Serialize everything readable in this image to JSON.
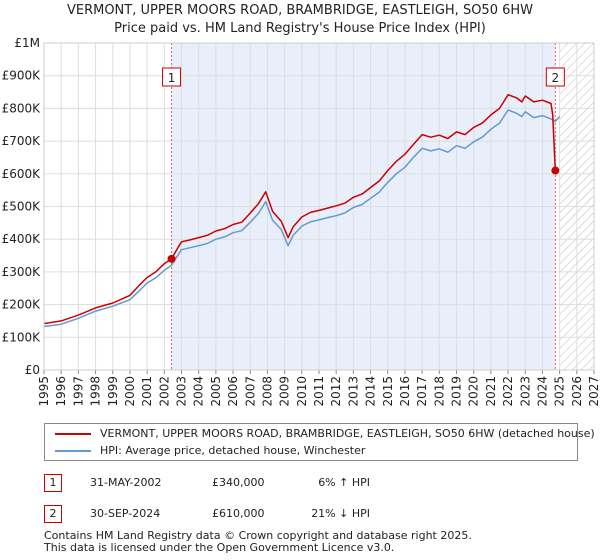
{
  "title_line1": "VERMONT, UPPER MOORS ROAD, BRAMBRIDGE, EASTLEIGH, SO50 6HW",
  "title_line2": "Price paid vs. HM Land Registry's House Price Index (HPI)",
  "colors": {
    "property_line": "#cc0000",
    "hpi_line": "#6699cc",
    "shade": "#e8eefa",
    "marker_line": "#e06060",
    "grid": "#dddddd"
  },
  "chart_data": {
    "type": "line",
    "title": "VERMONT, UPPER MOORS ROAD, BRAMBRIDGE, EASTLEIGH, SO50 6HW — Price paid vs. HM Land Registry's House Price Index (HPI)",
    "xlabel": "",
    "ylabel": "",
    "xlim": [
      1995,
      2027
    ],
    "ylim": [
      0,
      1000000
    ],
    "y_ticks": [
      {
        "value": 0,
        "label": "£0"
      },
      {
        "value": 100000,
        "label": "£100K"
      },
      {
        "value": 200000,
        "label": "£200K"
      },
      {
        "value": 300000,
        "label": "£300K"
      },
      {
        "value": 400000,
        "label": "£400K"
      },
      {
        "value": 500000,
        "label": "£500K"
      },
      {
        "value": 600000,
        "label": "£600K"
      },
      {
        "value": 700000,
        "label": "£700K"
      },
      {
        "value": 800000,
        "label": "£800K"
      },
      {
        "value": 900000,
        "label": "£900K"
      },
      {
        "value": 1000000,
        "label": "£1M"
      }
    ],
    "x_ticks": [
      "1995",
      "1996",
      "1997",
      "1998",
      "1999",
      "2000",
      "2001",
      "2002",
      "2003",
      "2004",
      "2005",
      "2006",
      "2007",
      "2008",
      "2009",
      "2010",
      "2011",
      "2012",
      "2013",
      "2014",
      "2015",
      "2016",
      "2017",
      "2018",
      "2019",
      "2020",
      "2021",
      "2022",
      "2023",
      "2024",
      "2025",
      "2026",
      "2027"
    ],
    "grid": true,
    "shaded_region": [
      2002.42,
      2024.75
    ],
    "hatched_region": [
      2025.0,
      2027
    ],
    "series": [
      {
        "name": "VERMONT, UPPER MOORS ROAD, BRAMBRIDGE, EASTLEIGH, SO50 6HW (detached house)",
        "x": [
          1995.0,
          1996.0,
          1997.0,
          1998.0,
          1999.0,
          2000.0,
          2000.6,
          2001.0,
          2001.5,
          2002.0,
          2002.42,
          2002.8,
          2003.0,
          2003.5,
          2004.0,
          2004.5,
          2005.0,
          2005.5,
          2006.0,
          2006.5,
          2007.0,
          2007.5,
          2007.9,
          2008.3,
          2008.8,
          2009.2,
          2009.5,
          2010.0,
          2010.5,
          2011.0,
          2011.5,
          2012.0,
          2012.5,
          2013.0,
          2013.5,
          2014.0,
          2014.5,
          2015.0,
          2015.5,
          2016.0,
          2016.5,
          2017.0,
          2017.5,
          2018.0,
          2018.5,
          2019.0,
          2019.5,
          2020.0,
          2020.5,
          2021.0,
          2021.5,
          2022.0,
          2022.5,
          2022.8,
          2023.0,
          2023.5,
          2024.0,
          2024.5,
          2024.6,
          2024.75
        ],
        "values": [
          142000,
          150000,
          168000,
          190000,
          205000,
          228000,
          262000,
          283000,
          300000,
          325000,
          340000,
          375000,
          392000,
          398000,
          405000,
          412000,
          425000,
          432000,
          445000,
          452000,
          480000,
          510000,
          545000,
          485000,
          455000,
          405000,
          438000,
          468000,
          482000,
          488000,
          495000,
          502000,
          510000,
          528000,
          538000,
          558000,
          578000,
          610000,
          638000,
          660000,
          690000,
          720000,
          712000,
          718000,
          708000,
          728000,
          720000,
          742000,
          755000,
          780000,
          800000,
          842000,
          832000,
          820000,
          838000,
          820000,
          825000,
          815000,
          780000,
          610000
        ]
      },
      {
        "name": "HPI: Average price, detached house, Winchester",
        "x": [
          1995.0,
          1996.0,
          1997.0,
          1998.0,
          1999.0,
          2000.0,
          2000.6,
          2001.0,
          2001.5,
          2002.0,
          2002.42,
          2002.8,
          2003.0,
          2003.5,
          2004.0,
          2004.5,
          2005.0,
          2005.5,
          2006.0,
          2006.5,
          2007.0,
          2007.5,
          2007.9,
          2008.3,
          2008.8,
          2009.2,
          2009.5,
          2010.0,
          2010.5,
          2011.0,
          2011.5,
          2012.0,
          2012.5,
          2013.0,
          2013.5,
          2014.0,
          2014.5,
          2015.0,
          2015.5,
          2016.0,
          2016.5,
          2017.0,
          2017.5,
          2018.0,
          2018.5,
          2019.0,
          2019.5,
          2020.0,
          2020.5,
          2021.0,
          2021.5,
          2022.0,
          2022.5,
          2022.8,
          2023.0,
          2023.5,
          2024.0,
          2024.5,
          2024.75,
          2025.0
        ],
        "values": [
          133000,
          140000,
          158000,
          180000,
          195000,
          215000,
          245000,
          266000,
          282000,
          305000,
          320000,
          352000,
          368000,
          374000,
          380000,
          387000,
          400000,
          407000,
          420000,
          426000,
          452000,
          480000,
          515000,
          458000,
          430000,
          380000,
          412000,
          440000,
          453000,
          459000,
          466000,
          472000,
          480000,
          497000,
          506000,
          525000,
          544000,
          574000,
          600000,
          620000,
          650000,
          678000,
          670000,
          676000,
          666000,
          686000,
          678000,
          698000,
          712000,
          736000,
          755000,
          795000,
          785000,
          775000,
          790000,
          772000,
          778000,
          768000,
          760000,
          775000
        ]
      }
    ],
    "transactions": [
      {
        "label": "1",
        "x": 2002.42,
        "value": 340000
      },
      {
        "label": "2",
        "x": 2024.75,
        "value": 610000
      }
    ]
  },
  "legend": {
    "property_label": "VERMONT, UPPER MOORS ROAD, BRAMBRIDGE, EASTLEIGH, SO50 6HW (detached house)",
    "hpi_label": "HPI: Average price, detached house, Winchester"
  },
  "transactions_table": [
    {
      "num": "1",
      "date": "31-MAY-2002",
      "price": "£340,000",
      "hpi": "6% ↑ HPI"
    },
    {
      "num": "2",
      "date": "30-SEP-2024",
      "price": "£610,000",
      "hpi": "21% ↓ HPI"
    }
  ],
  "footer": {
    "line1": "Contains HM Land Registry data © Crown copyright and database right 2025.",
    "line2": "This data is licensed under the Open Government Licence v3.0."
  }
}
